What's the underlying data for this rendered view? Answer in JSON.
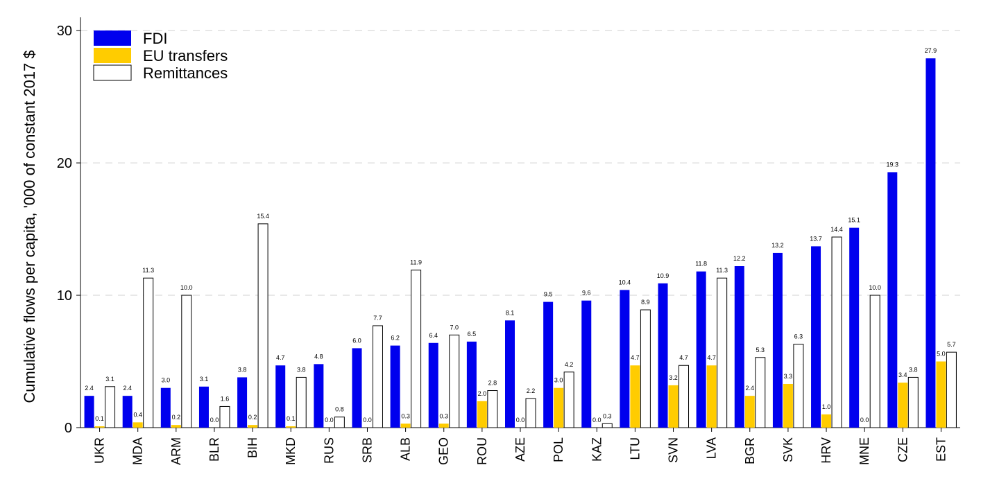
{
  "chart_data": {
    "type": "bar",
    "title": "",
    "xlabel": "",
    "ylabel": "Cumulative flows per capita, '000 of constant 2017 $",
    "ylim": [
      0,
      31
    ],
    "yticks": [
      0,
      10,
      20,
      30
    ],
    "grid": "horizontal dashed",
    "legend_position": "top-left",
    "categories": [
      "UKR",
      "MDA",
      "ARM",
      "BLR",
      "BIH",
      "MKD",
      "RUS",
      "SRB",
      "ALB",
      "GEO",
      "ROU",
      "AZE",
      "POL",
      "KAZ",
      "LTU",
      "SVN",
      "LVA",
      "BGR",
      "SVK",
      "HRV",
      "MNE",
      "CZE",
      "EST"
    ],
    "series": [
      {
        "name": "FDI",
        "color": "#0000ee",
        "values": [
          2.4,
          2.4,
          3.0,
          3.1,
          3.8,
          4.7,
          4.8,
          6.0,
          6.2,
          6.4,
          6.5,
          8.1,
          9.5,
          9.6,
          10.4,
          10.9,
          11.8,
          12.2,
          13.2,
          13.7,
          15.1,
          19.3,
          27.9
        ]
      },
      {
        "name": "EU transfers",
        "color": "#ffcc00",
        "values": [
          0.1,
          0.4,
          0.2,
          0.0,
          0.2,
          0.1,
          0.0,
          0.0,
          0.3,
          0.3,
          2.0,
          0.0,
          3.0,
          0.0,
          4.7,
          3.2,
          4.7,
          2.4,
          3.3,
          1.0,
          0.0,
          3.4,
          5.0
        ]
      },
      {
        "name": "Remittances",
        "color": "#ffffff",
        "values": [
          3.1,
          11.3,
          10.0,
          1.6,
          15.4,
          3.8,
          0.8,
          7.7,
          11.9,
          7.0,
          2.8,
          2.2,
          4.2,
          0.3,
          8.9,
          4.7,
          11.3,
          5.3,
          6.3,
          14.4,
          10.0,
          3.8,
          5.7
        ]
      }
    ]
  }
}
